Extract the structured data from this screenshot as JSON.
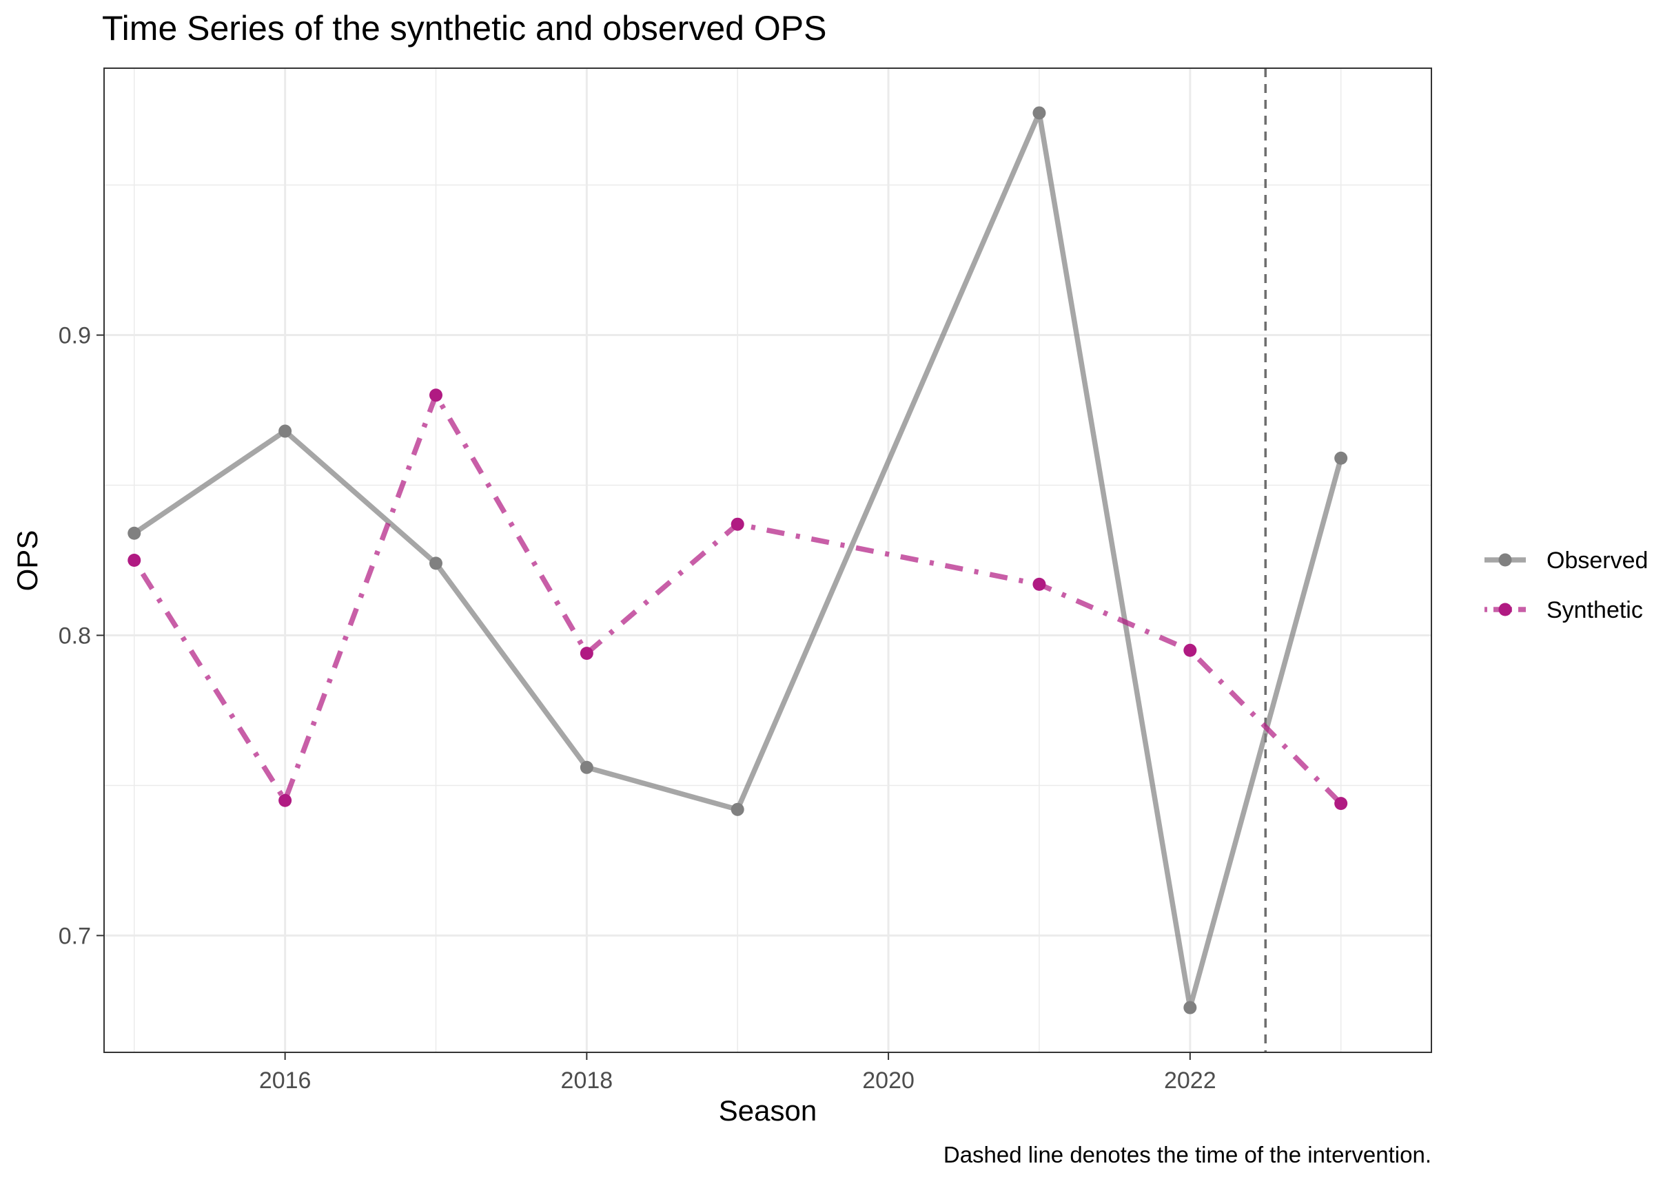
{
  "chart_data": {
    "type": "line",
    "title": "Time Series of the synthetic and observed OPS",
    "xlabel": "Season",
    "ylabel": "OPS",
    "caption": "Dashed line denotes the time of the intervention.",
    "xlim": [
      2014.8,
      2023.6
    ],
    "ylim": [
      0.6611,
      0.9889
    ],
    "x_ticks": [
      2016,
      2018,
      2020,
      2022
    ],
    "x_tick_labels": [
      "2016",
      "2018",
      "2020",
      "2022"
    ],
    "y_ticks": [
      0.7,
      0.8,
      0.9
    ],
    "y_tick_labels": [
      "0.7",
      "0.8",
      "0.9"
    ],
    "grid": true,
    "legend_position": "right",
    "intervention_x": 2022.5,
    "x": [
      2015,
      2016,
      2017,
      2018,
      2019,
      2020,
      2021,
      2022,
      2023
    ],
    "series": [
      {
        "name": "Observed",
        "color": "#808080",
        "line_style": "solid",
        "x": [
          2015,
          2016,
          2017,
          2018,
          2019,
          2021,
          2022,
          2023
        ],
        "values": [
          0.834,
          0.868,
          0.824,
          0.756,
          0.742,
          0.974,
          0.676,
          0.859
        ]
      },
      {
        "name": "Synthetic",
        "color": "#B01A82",
        "line_style": "dotdash",
        "x": [
          2015,
          2016,
          2017,
          2018,
          2019,
          2021,
          2022,
          2023
        ],
        "values": [
          0.825,
          0.745,
          0.88,
          0.794,
          0.837,
          0.817,
          0.795,
          0.744
        ]
      }
    ]
  }
}
